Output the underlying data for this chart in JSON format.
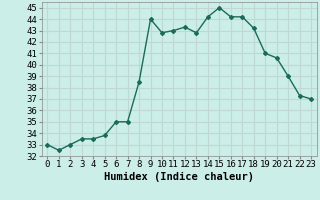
{
  "x": [
    0,
    1,
    2,
    3,
    4,
    5,
    6,
    7,
    8,
    9,
    10,
    11,
    12,
    13,
    14,
    15,
    16,
    17,
    18,
    19,
    20,
    21,
    22,
    23
  ],
  "y": [
    33,
    32.5,
    33,
    33.5,
    33.5,
    33.8,
    35,
    35,
    38.5,
    44,
    42.8,
    43,
    43.3,
    42.8,
    44.2,
    45,
    44.2,
    44.2,
    43.2,
    41,
    40.6,
    39,
    37.3,
    37
  ],
  "line_color": "#1a6b5a",
  "marker": "D",
  "markersize": 2.0,
  "linewidth": 1.0,
  "xlabel": "Humidex (Indice chaleur)",
  "xlim": [
    -0.5,
    23.5
  ],
  "ylim": [
    32,
    45.5
  ],
  "yticks": [
    32,
    33,
    34,
    35,
    36,
    37,
    38,
    39,
    40,
    41,
    42,
    43,
    44,
    45
  ],
  "xticks": [
    0,
    1,
    2,
    3,
    4,
    5,
    6,
    7,
    8,
    9,
    10,
    11,
    12,
    13,
    14,
    15,
    16,
    17,
    18,
    19,
    20,
    21,
    22,
    23
  ],
  "bg_color": "#cceee8",
  "grid_color": "#c0d8d4",
  "tick_label_fontsize": 6.5,
  "xlabel_fontsize": 7.5
}
